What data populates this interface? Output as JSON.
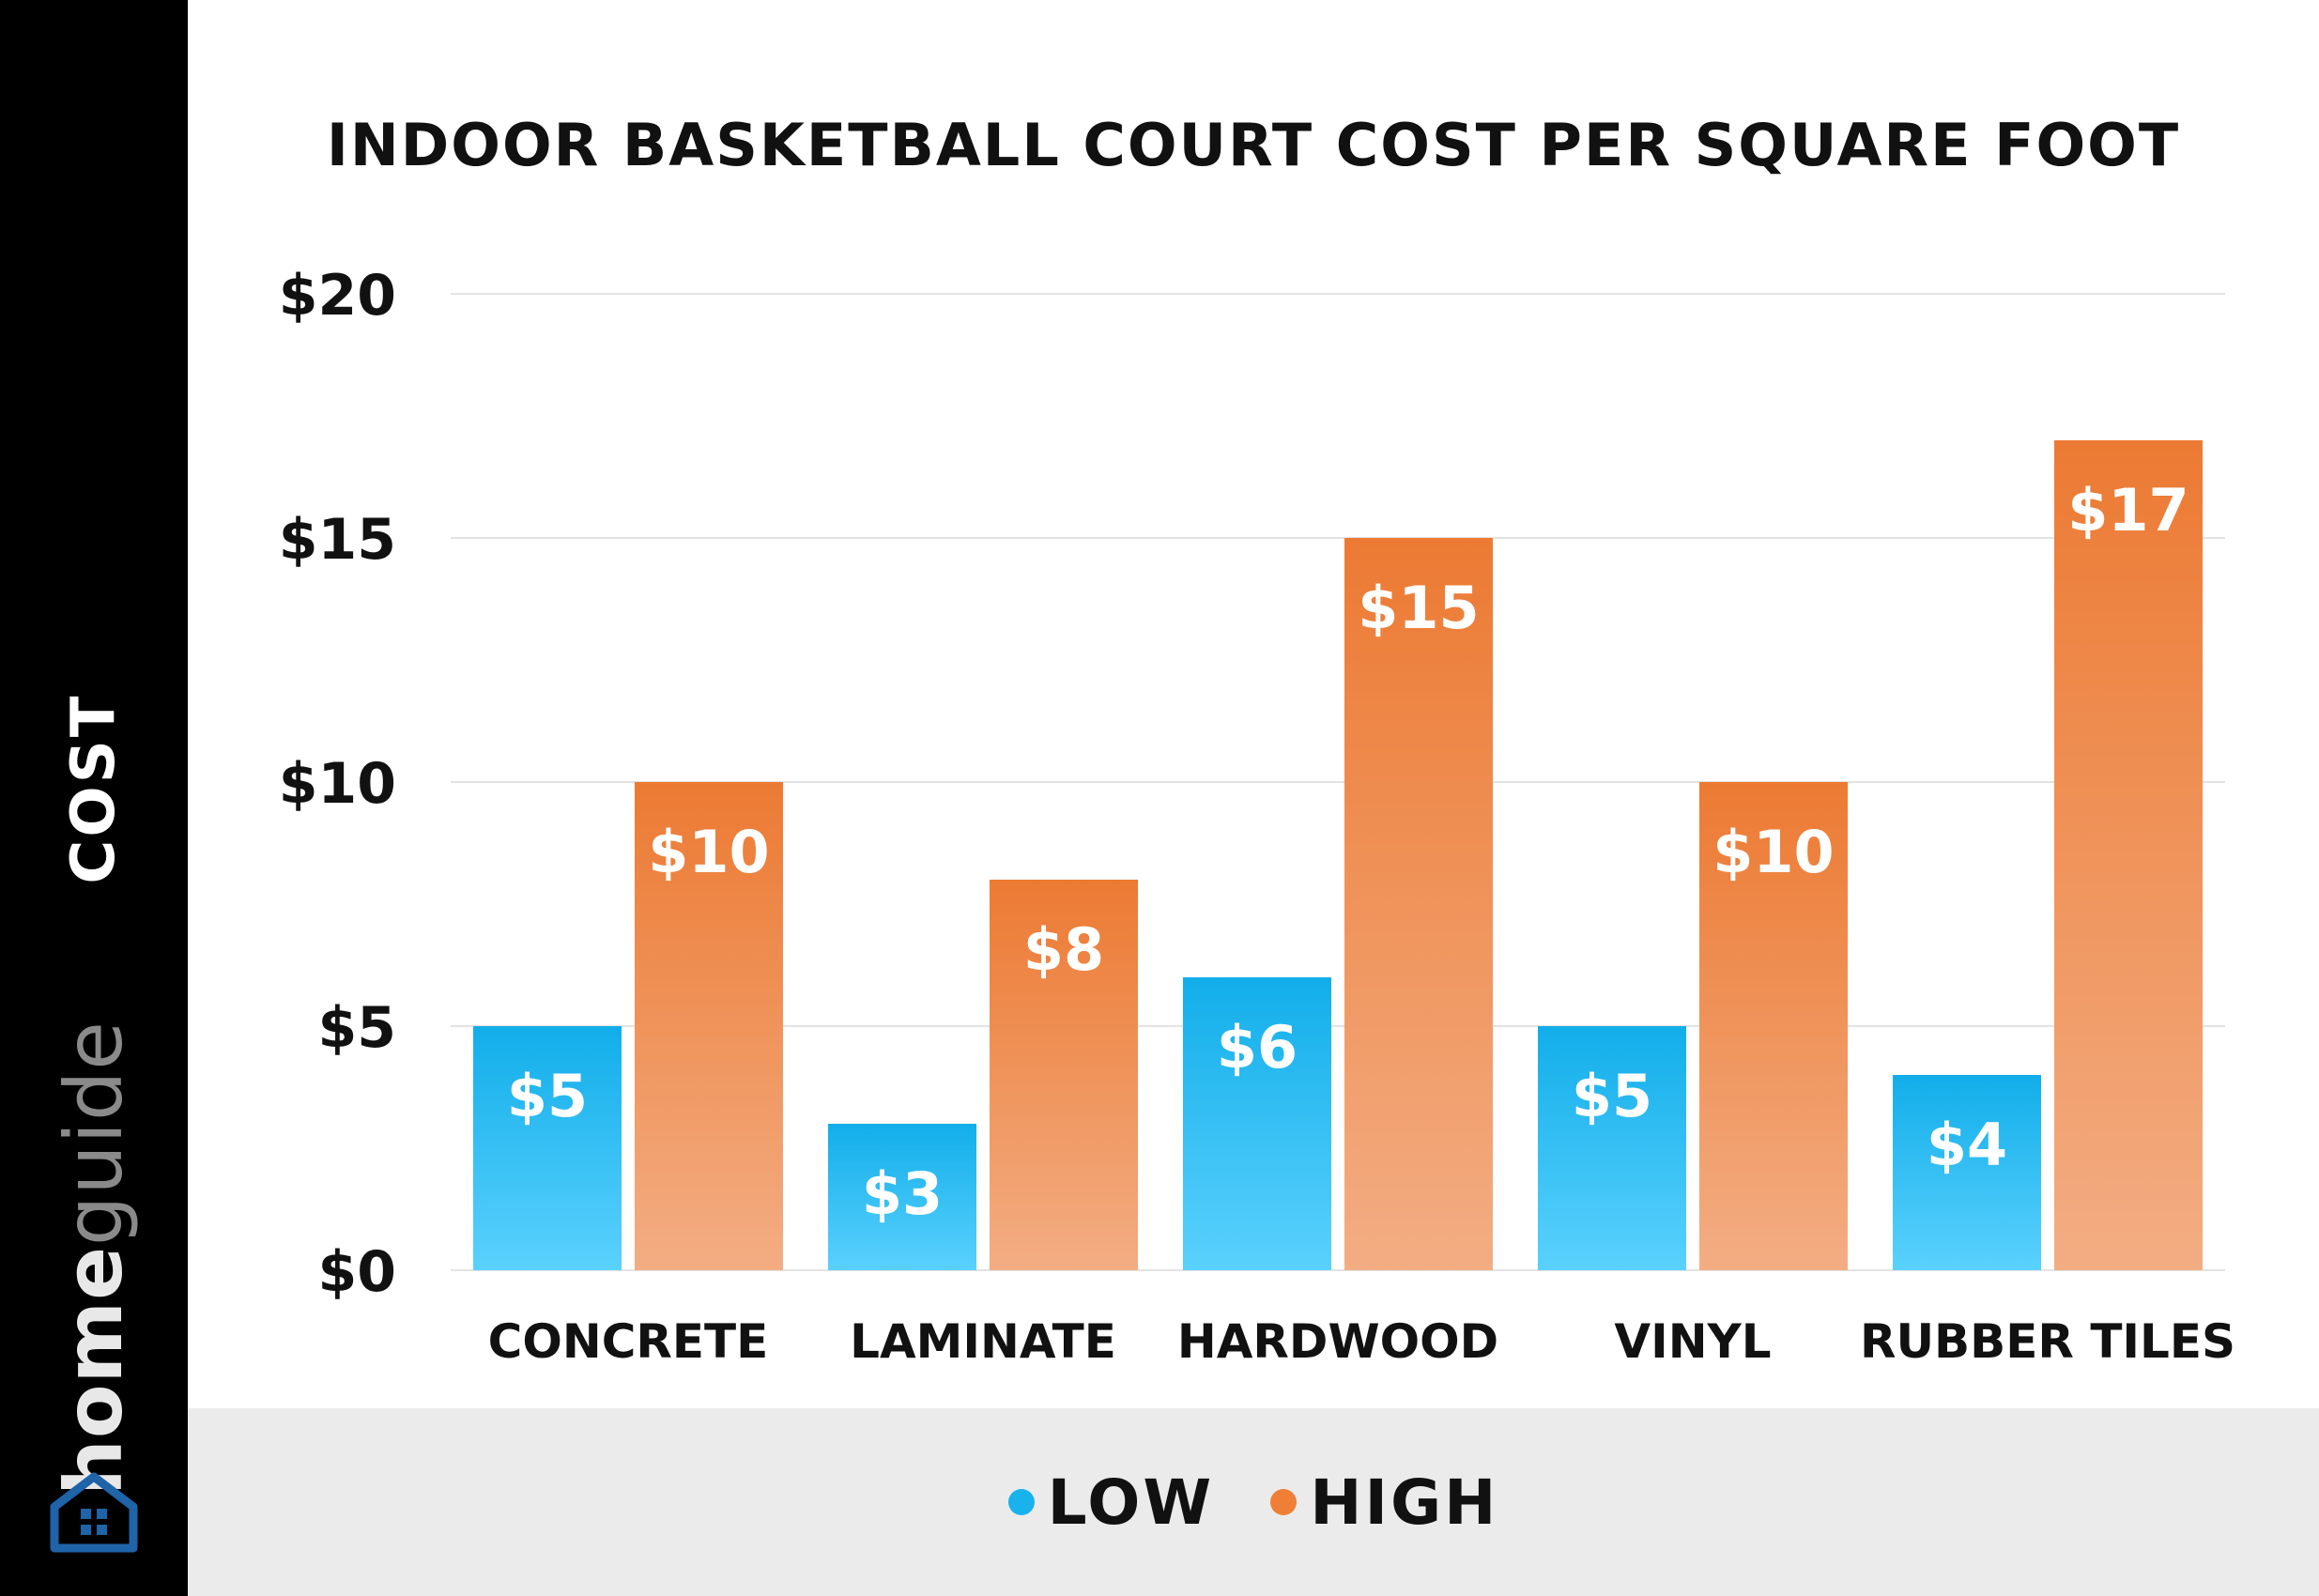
{
  "sidebar": {
    "axis_title": "COST",
    "brand_bold": "home",
    "brand_light": "guide"
  },
  "colors": {
    "low": "#1ab2ec",
    "high": "#ef7f36",
    "sidebar": "#000000",
    "legend_bg": "#ebebeb"
  },
  "icons": {
    "brand": "house-icon"
  },
  "chart_data": {
    "type": "bar",
    "title": "INDOOR BASKETBALL COURT COST PER SQUARE FOOT",
    "ylabel": "COST",
    "xlabel": "",
    "categories": [
      "CONCRETE",
      "LAMINATE",
      "HARDWOOD",
      "VINYL",
      "RUBBER TILES"
    ],
    "series": [
      {
        "name": "LOW",
        "values": [
          5,
          3,
          6,
          5,
          4
        ],
        "labels": [
          "$5",
          "$3",
          "$6",
          "$5",
          "$4"
        ]
      },
      {
        "name": "HIGH",
        "values": [
          10,
          8,
          15,
          10,
          17
        ],
        "labels": [
          "$10",
          "$8",
          "$15",
          "$10",
          "$17"
        ]
      }
    ],
    "ylim": [
      0,
      20
    ],
    "yticks": [
      0,
      5,
      10,
      15,
      20
    ],
    "ytick_labels": [
      "$0",
      "$5",
      "$10",
      "$15",
      "$20"
    ],
    "grid": true,
    "legend_position": "bottom"
  }
}
